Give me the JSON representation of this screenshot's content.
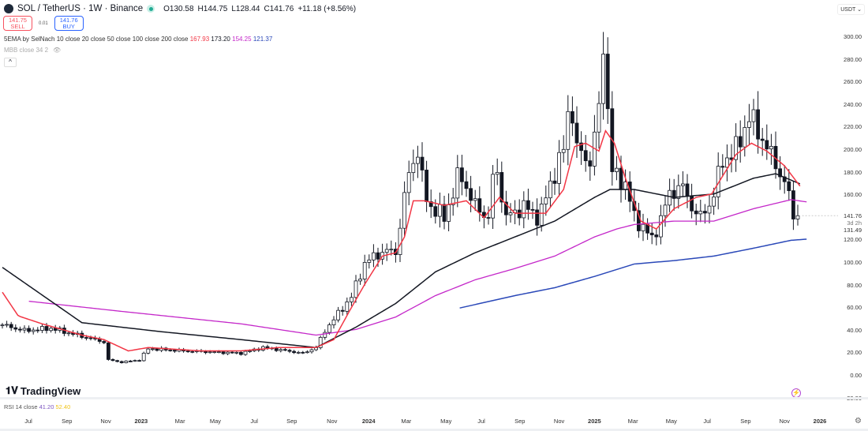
{
  "header": {
    "symbol": "SOL / TetherUS · 1W · Binance",
    "open": "O130.58",
    "high": "H144.75",
    "low": "L128.44",
    "close": "C141.76",
    "change": "+11.18 (+8.56%)"
  },
  "trade": {
    "sell_price": "141.75",
    "sell_label": "SELL",
    "spread": "0.01",
    "buy_price": "141.76",
    "buy_label": "BUY"
  },
  "indicators": {
    "ema_label": "5EMA by SelNach 10 close 20 close 50 close 100 close 200 close",
    "ema_values": [
      {
        "v": "167.93",
        "color": "#f23645"
      },
      {
        "v": "173.20",
        "color": "#131722"
      },
      {
        "v": "154.25",
        "color": "#c427c9"
      },
      {
        "v": "121.37",
        "color": "#2a48b8"
      }
    ],
    "mbb_label": "MBB close 34 2"
  },
  "axis": {
    "currency": "USDT",
    "ticks": [
      "300.00",
      "280.00",
      "260.00",
      "240.00",
      "220.00",
      "200.00",
      "180.00",
      "160.00",
      "120.00",
      "100.00",
      "80.00",
      "60.00",
      "40.00",
      "20.00",
      "0.00",
      "-20.00"
    ],
    "last_price": "141.76",
    "countdown": "3d 2h",
    "prev_price": "131.49"
  },
  "branding": "TradingView",
  "rsi": {
    "label": "RSI 14 close",
    "v1": "41.20",
    "v2": "52.40"
  },
  "time_labels": [
    {
      "t": "Jul",
      "w": 5.9
    },
    {
      "t": "Sep",
      "w": 14.6
    },
    {
      "t": "Nov",
      "w": 23.4
    },
    {
      "t": "2023",
      "w": 31.4
    },
    {
      "t": "Mar",
      "w": 40.2
    },
    {
      "t": "May",
      "w": 48.2
    },
    {
      "t": "Jul",
      "w": 57
    },
    {
      "t": "Sep",
      "w": 65.5
    },
    {
      "t": "Nov",
      "w": 74.6
    },
    {
      "t": "2024",
      "w": 82.9
    },
    {
      "t": "Mar",
      "w": 91.4
    },
    {
      "t": "May",
      "w": 100.4
    },
    {
      "t": "Jul",
      "w": 108.4
    },
    {
      "t": "Sep",
      "w": 117.1
    },
    {
      "t": "Nov",
      "w": 126
    },
    {
      "t": "2025",
      "w": 134
    },
    {
      "t": "Mar",
      "w": 142.7
    },
    {
      "t": "May",
      "w": 151.4
    },
    {
      "t": "Jul",
      "w": 159.5
    },
    {
      "t": "Sep",
      "w": 168.2
    },
    {
      "t": "Nov",
      "w": 177
    },
    {
      "t": "2026",
      "w": 185
    }
  ],
  "chart_data": {
    "type": "candlestick",
    "interval": "1W",
    "ylim": [
      -20,
      300
    ],
    "close_anchors": [
      [
        0,
        45
      ],
      [
        5,
        40
      ],
      [
        11,
        42
      ],
      [
        18,
        35
      ],
      [
        23,
        30
      ],
      [
        24,
        14
      ],
      [
        27,
        12
      ],
      [
        31,
        14
      ],
      [
        33,
        24
      ],
      [
        41,
        22
      ],
      [
        54,
        20
      ],
      [
        59,
        25
      ],
      [
        68,
        20
      ],
      [
        71,
        25
      ],
      [
        73,
        40
      ],
      [
        77,
        60
      ],
      [
        79,
        70
      ],
      [
        82,
        100
      ],
      [
        86,
        110
      ],
      [
        89,
        110
      ],
      [
        92,
        180
      ],
      [
        94,
        200
      ],
      [
        95.5,
        160
      ],
      [
        97,
        150
      ],
      [
        100,
        140
      ],
      [
        103.5,
        180
      ],
      [
        107,
        150
      ],
      [
        110,
        140
      ],
      [
        111.5,
        190
      ],
      [
        114,
        140
      ],
      [
        118,
        150
      ],
      [
        121.5,
        140
      ],
      [
        124,
        170
      ],
      [
        127,
        200
      ],
      [
        128.5,
        250
      ],
      [
        130,
        200
      ],
      [
        133,
        190
      ],
      [
        135.7,
        250
      ],
      [
        136,
        295
      ],
      [
        138,
        180
      ],
      [
        141,
        170
      ],
      [
        143,
        140
      ],
      [
        145.5,
        130
      ],
      [
        147,
        120
      ],
      [
        149,
        140
      ],
      [
        151,
        160
      ],
      [
        153.5,
        170
      ],
      [
        156,
        150
      ],
      [
        158,
        140
      ],
      [
        160.5,
        155
      ],
      [
        163,
        190
      ],
      [
        166,
        200
      ],
      [
        169,
        230
      ],
      [
        172,
        210
      ],
      [
        176,
        180
      ],
      [
        178,
        160
      ],
      [
        179.5,
        130
      ],
      [
        180.5,
        141.76
      ]
    ],
    "ema10": [
      [
        0,
        74
      ],
      [
        3.6,
        53
      ],
      [
        9,
        46
      ],
      [
        18,
        36
      ],
      [
        23,
        32
      ],
      [
        28.5,
        22
      ],
      [
        33,
        25
      ],
      [
        45,
        22
      ],
      [
        54,
        22
      ],
      [
        62.5,
        25
      ],
      [
        71,
        25
      ],
      [
        75,
        32
      ],
      [
        78.5,
        57
      ],
      [
        82,
        81
      ],
      [
        86,
        106
      ],
      [
        89,
        109
      ],
      [
        91,
        123
      ],
      [
        93,
        155
      ],
      [
        95.5,
        155
      ],
      [
        100,
        151
      ],
      [
        105,
        155
      ],
      [
        109,
        140
      ],
      [
        112.5,
        158
      ],
      [
        116,
        144
      ],
      [
        123,
        144
      ],
      [
        127,
        165
      ],
      [
        129.5,
        203
      ],
      [
        132,
        206
      ],
      [
        135,
        199
      ],
      [
        136.5,
        217
      ],
      [
        138.5,
        206
      ],
      [
        141,
        175
      ],
      [
        144.5,
        137
      ],
      [
        148,
        130
      ],
      [
        152,
        148
      ],
      [
        157,
        158
      ],
      [
        160.5,
        161
      ],
      [
        166,
        196
      ],
      [
        169.5,
        206
      ],
      [
        173,
        199
      ],
      [
        177,
        186
      ],
      [
        180.5,
        168
      ]
    ],
    "ema_black": [
      [
        0,
        96
      ],
      [
        18,
        47
      ],
      [
        36,
        39
      ],
      [
        54,
        32
      ],
      [
        71,
        25
      ],
      [
        80,
        43
      ],
      [
        89,
        64
      ],
      [
        98,
        92
      ],
      [
        107,
        109
      ],
      [
        116,
        123
      ],
      [
        125,
        137
      ],
      [
        134,
        158
      ],
      [
        137.5,
        165
      ],
      [
        143,
        165
      ],
      [
        152,
        158
      ],
      [
        161,
        161
      ],
      [
        170,
        175
      ],
      [
        175,
        179
      ],
      [
        180.5,
        170
      ]
    ],
    "ema_magenta": [
      [
        6,
        66
      ],
      [
        27,
        57
      ],
      [
        54,
        46
      ],
      [
        71,
        36
      ],
      [
        80,
        41
      ],
      [
        89,
        52
      ],
      [
        98,
        71
      ],
      [
        107,
        85
      ],
      [
        116,
        95
      ],
      [
        125,
        106
      ],
      [
        134,
        123
      ],
      [
        139,
        130
      ],
      [
        143,
        134
      ],
      [
        152,
        137
      ],
      [
        161,
        137
      ],
      [
        170,
        148
      ],
      [
        178.5,
        156
      ],
      [
        182,
        154
      ]
    ],
    "ema_blue": [
      [
        103.5,
        60
      ],
      [
        116,
        71
      ],
      [
        125,
        78
      ],
      [
        134,
        88
      ],
      [
        143,
        99
      ],
      [
        152,
        102
      ],
      [
        161,
        106
      ],
      [
        170,
        113
      ],
      [
        178.5,
        120
      ],
      [
        182,
        121
      ]
    ]
  }
}
